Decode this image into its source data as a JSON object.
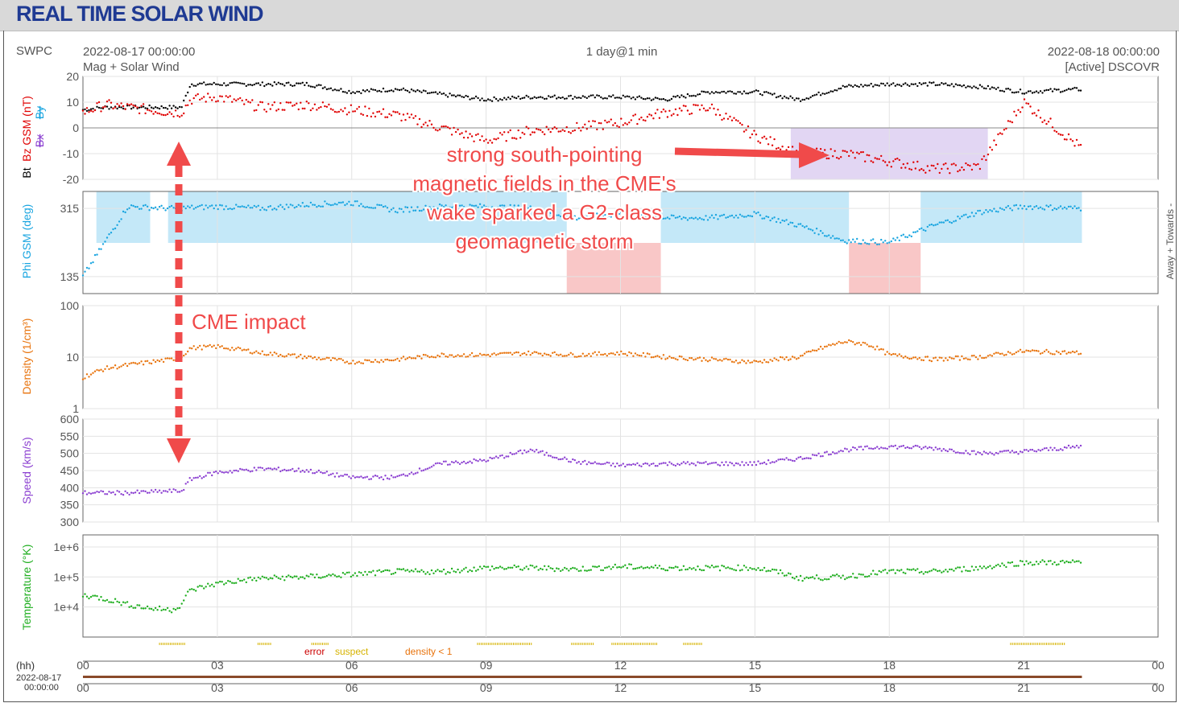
{
  "page": {
    "title": "REAL TIME SOLAR WIND",
    "header": {
      "source": "SWPC",
      "start_time": "2022-08-17 00:00:00",
      "subtitle": "Mag + Solar Wind",
      "resolution": "1 day@1 min",
      "end_time": "2022-08-18 00:00:00",
      "spacecraft": "[Active] DSCOVR"
    },
    "annotations": {
      "storm_line1": "strong south-pointing",
      "storm_line2": "magnetic fields in the CME's",
      "storm_line3": "wake sparked a G2-class",
      "storm_line4": "geomagnetic storm",
      "impact": "CME impact"
    },
    "legend": {
      "error": "error",
      "suspect": "suspect",
      "density": "density < 1"
    },
    "axis_bottom": {
      "unit": "(hh)",
      "date": "2022-08-17",
      "time": "00:00:00"
    },
    "colors": {
      "bt": "#000000",
      "bz": "#e00000",
      "bx": "#8b3fd1",
      "by": "#19a5e0",
      "phi": "#19a5e0",
      "density": "#e8730c",
      "speed": "#8b3fd1",
      "temperature": "#1fae1f",
      "away_fill": "#c4e8f8",
      "toward_fill": "#f9c7c7",
      "south_fill": "#e2d6f3",
      "annotation": "#f04a4a",
      "title": "#1f3a93"
    }
  },
  "chart_data": [
    {
      "type": "line",
      "name": "magnetic field",
      "ylabels": [
        "Bz GSM (nT)",
        "Bx",
        "By",
        "Bt"
      ],
      "ylim": [
        -20,
        20
      ],
      "yticks": [
        "20",
        "10",
        "0",
        "-10",
        "-20"
      ],
      "x": [
        0,
        0.5,
        1,
        1.5,
        2,
        2.2,
        2.4,
        3,
        4,
        5,
        6,
        7,
        8,
        9,
        10,
        11,
        12,
        13,
        14,
        15,
        16,
        17,
        18,
        19,
        20,
        21,
        22.3
      ],
      "series": [
        {
          "name": "Bt",
          "values": [
            7,
            8,
            8,
            8,
            8,
            8,
            17,
            17,
            17,
            17,
            14,
            15,
            13,
            11,
            12,
            12,
            12,
            11,
            14,
            14,
            11,
            16,
            17,
            17,
            16,
            14,
            15
          ]
        },
        {
          "name": "Bz GSM",
          "values": [
            6,
            9,
            8,
            7,
            6,
            6,
            11,
            12,
            8,
            9,
            7,
            5,
            0,
            -5,
            -1,
            0,
            2,
            6,
            8,
            -3,
            -10,
            -10,
            -13,
            -16,
            -15,
            10,
            -8
          ]
        }
      ]
    },
    {
      "type": "scatter",
      "name": "phi",
      "ylabels": [
        "Phi GSM (deg)",
        "Away + Towards -"
      ],
      "ylim": [
        90,
        360
      ],
      "yticks": [
        "315",
        "135"
      ],
      "x": [
        0,
        1,
        2,
        3,
        4,
        5,
        6,
        7,
        8,
        9,
        10,
        11,
        12,
        13,
        14,
        15,
        16,
        17,
        18,
        19,
        20,
        21,
        22.3
      ],
      "values": [
        135,
        320,
        315,
        320,
        315,
        325,
        330,
        310,
        320,
        320,
        315,
        290,
        300,
        290,
        290,
        300,
        270,
        230,
        225,
        270,
        305,
        320,
        315
      ]
    },
    {
      "type": "scatter",
      "name": "density",
      "ylabel": "Density (1/cm³)",
      "ylim": [
        1,
        100
      ],
      "scale": "log",
      "yticks": [
        "100",
        "10",
        "1"
      ],
      "x": [
        0,
        0.5,
        1,
        1.5,
        2,
        2.2,
        2.4,
        3,
        4,
        5,
        6,
        7,
        8,
        9,
        10,
        11,
        12,
        13,
        14,
        15,
        16,
        17,
        17.5,
        18,
        19,
        20,
        21,
        22.3
      ],
      "values": [
        4,
        6,
        7,
        8,
        9,
        10,
        15,
        16,
        12,
        10,
        8,
        9,
        11,
        11,
        12,
        11,
        12,
        10,
        9,
        8,
        10,
        20,
        18,
        11,
        9,
        10,
        13,
        12
      ]
    },
    {
      "type": "scatter",
      "name": "speed",
      "ylabel": "Speed (km/s)",
      "ylim": [
        300,
        600
      ],
      "yticks": [
        "600",
        "550",
        "500",
        "450",
        "400",
        "350",
        "300"
      ],
      "x": [
        0,
        1,
        2,
        2.2,
        2.4,
        3,
        4,
        5,
        6,
        7,
        8,
        9,
        10,
        11,
        12,
        13,
        14,
        15,
        16,
        17,
        18,
        19,
        20,
        21,
        22.3
      ],
      "values": [
        385,
        385,
        390,
        390,
        425,
        445,
        455,
        450,
        430,
        430,
        470,
        480,
        510,
        475,
        465,
        470,
        470,
        470,
        485,
        510,
        520,
        515,
        500,
        505,
        520
      ]
    },
    {
      "type": "scatter",
      "name": "temperature",
      "ylabel": "Temperature (°K)",
      "scale": "log",
      "yticks": [
        "1e+6",
        "1e+5",
        "1e+4"
      ],
      "x": [
        0,
        1,
        1.5,
        2,
        2.2,
        2.4,
        3,
        4,
        5,
        6,
        7,
        8,
        9,
        10,
        11,
        12,
        13,
        14,
        15,
        16,
        17,
        18,
        19,
        20,
        21,
        22.3
      ],
      "values": [
        25000,
        12000,
        9000,
        8000,
        12000,
        35000,
        60000,
        90000,
        100000,
        120000,
        150000,
        150000,
        200000,
        200000,
        180000,
        220000,
        200000,
        200000,
        200000,
        90000,
        100000,
        150000,
        150000,
        200000,
        300000,
        300000
      ]
    }
  ],
  "x_axis": {
    "ticks": [
      "00",
      "03",
      "06",
      "09",
      "12",
      "15",
      "18",
      "21",
      "00"
    ],
    "range_hours": [
      0,
      24
    ]
  }
}
